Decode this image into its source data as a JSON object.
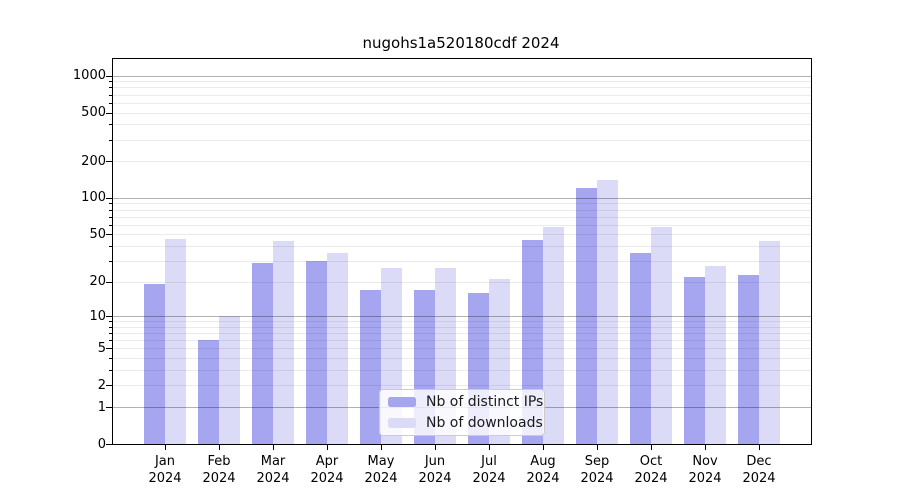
{
  "chart_data": {
    "type": "bar",
    "title": "nugohs1a520180cdf 2024",
    "categories": [
      "Jan 2024",
      "Feb 2024",
      "Mar 2024",
      "Apr 2024",
      "May 2024",
      "Jun 2024",
      "Jul 2024",
      "Aug 2024",
      "Sep 2024",
      "Oct 2024",
      "Nov 2024",
      "Dec 2024"
    ],
    "series": [
      {
        "name": "Nb of distinct IPs",
        "color": "#a5a5f0",
        "values": [
          19,
          6,
          29,
          30,
          17,
          17,
          16,
          45,
          120,
          35,
          22,
          23
        ]
      },
      {
        "name": "Nb of downloads",
        "color": "#dbdbf8",
        "values": [
          46,
          10,
          44,
          35,
          26,
          26,
          21,
          58,
          140,
          58,
          27,
          44
        ]
      }
    ],
    "yscale": "log1p",
    "ylim": [
      0,
      1364
    ],
    "yticks": [
      0,
      1,
      2,
      5,
      10,
      20,
      50,
      100,
      200,
      500,
      1000
    ],
    "ytick_labels": [
      "0",
      "1",
      "2",
      "5",
      "10",
      "20",
      "50",
      "100",
      "200",
      "500",
      "1000"
    ],
    "grid": true,
    "legend_position": "lower center",
    "background_color": "#ffffff",
    "spine_color": "#000000"
  }
}
